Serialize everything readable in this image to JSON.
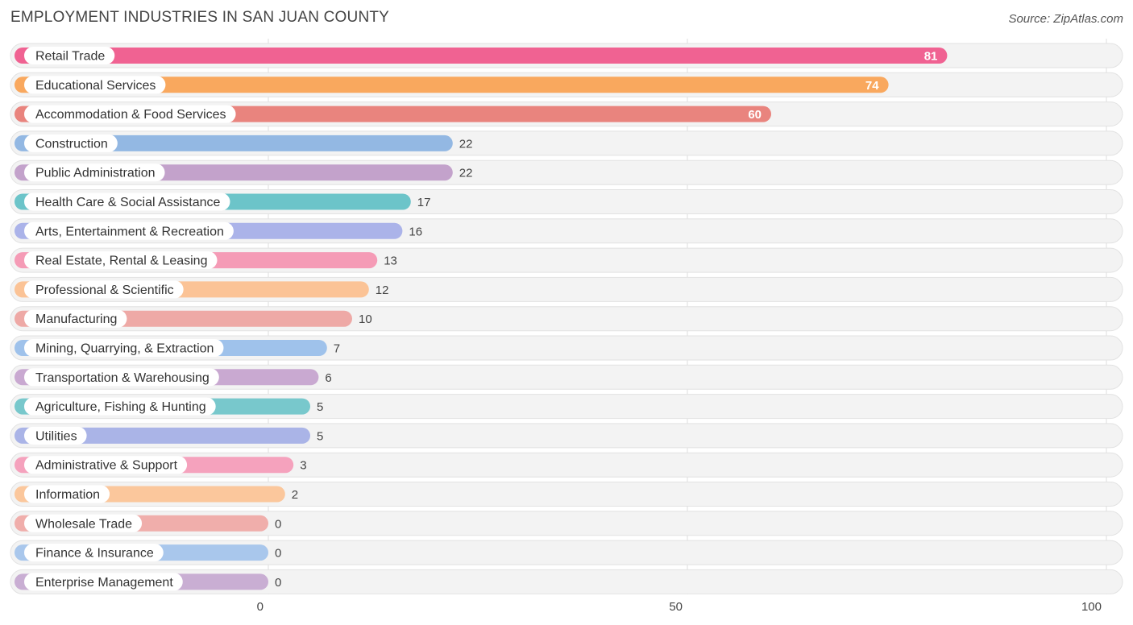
{
  "title": "EMPLOYMENT INDUSTRIES IN SAN JUAN COUNTY",
  "source": "Source: ZipAtlas.com",
  "chart_data": {
    "type": "bar",
    "orientation": "horizontal",
    "title": "EMPLOYMENT INDUSTRIES IN SAN JUAN COUNTY",
    "xlim": [
      0,
      100
    ],
    "x_ticks": [
      0,
      50,
      100
    ],
    "grid": true,
    "categories": [
      "Retail Trade",
      "Educational Services",
      "Accommodation & Food Services",
      "Construction",
      "Public Administration",
      "Health Care & Social Assistance",
      "Arts, Entertainment & Recreation",
      "Real Estate, Rental & Leasing",
      "Professional & Scientific",
      "Manufacturing",
      "Mining, Quarrying, & Extraction",
      "Transportation & Warehousing",
      "Agriculture, Fishing & Hunting",
      "Utilities",
      "Administrative & Support",
      "Information",
      "Wholesale Trade",
      "Finance & Insurance",
      "Enterprise Management"
    ],
    "values": [
      81,
      74,
      60,
      22,
      22,
      17,
      16,
      13,
      12,
      10,
      7,
      6,
      5,
      5,
      3,
      2,
      0,
      0,
      0
    ],
    "colors": [
      "#f06292",
      "#f9a85e",
      "#e9847e",
      "#93b8e3",
      "#c3a2cb",
      "#6cc4c9",
      "#abb3e9",
      "#f59bb6",
      "#fbc396",
      "#eea9a6",
      "#9fc2eb",
      "#c9a9d1",
      "#78c8cc",
      "#aab4e7",
      "#f5a2bd",
      "#fbc79c",
      "#f0aeab",
      "#a9c7ec",
      "#c9aed3"
    ]
  }
}
